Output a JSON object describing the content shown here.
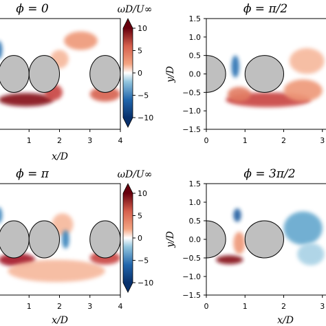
{
  "chart_data": [
    {
      "type": "heatmap",
      "panel": "top-left",
      "title": "ϕ = 0",
      "xlabel": "x/D",
      "ylabel": "",
      "xticks": [
        "1",
        "2",
        "3",
        "4"
      ],
      "yticks": [],
      "xlim": [
        0.0,
        4.0
      ],
      "ylim": [
        -1.5,
        1.5
      ],
      "cylinders": [
        {
          "x": 0.5,
          "y": 0.0,
          "r": 0.5
        },
        {
          "x": 1.5,
          "y": 0.0,
          "r": 0.5
        },
        {
          "x": 3.5,
          "y": 0.0,
          "r": 0.5
        }
      ],
      "regions": [
        {
          "x": 0.9,
          "y": -0.7,
          "rx": 0.9,
          "ry": 0.18,
          "w": 9
        },
        {
          "x": 1.8,
          "y": -0.5,
          "rx": 0.3,
          "ry": 0.22,
          "w": 6
        },
        {
          "x": 3.5,
          "y": -0.55,
          "rx": 0.5,
          "ry": 0.2,
          "w": 5
        },
        {
          "x": 2.7,
          "y": 0.9,
          "rx": 0.55,
          "ry": 0.25,
          "w": 3
        },
        {
          "x": 2.0,
          "y": 0.4,
          "rx": 0.3,
          "ry": 0.25,
          "w": 2
        },
        {
          "x": 0.0,
          "y": 0.65,
          "rx": 0.12,
          "ry": 0.25,
          "w": -7
        }
      ]
    },
    {
      "type": "heatmap",
      "panel": "top-right",
      "title": "ϕ = π/2",
      "xlabel": "",
      "ylabel": "y/D",
      "xticks": [
        "0",
        "1",
        "2",
        "3"
      ],
      "yticks": [
        "1.5",
        "1.0",
        "0.5",
        "0.0",
        "−0.5",
        "−1.0",
        "−1.5"
      ],
      "xlim": [
        0.0,
        3.2
      ],
      "ylim": [
        -1.5,
        1.5
      ],
      "cylinders": [
        {
          "x": 0.0,
          "y": 0.0,
          "r": 0.5
        },
        {
          "x": 1.5,
          "y": 0.0,
          "r": 0.5
        }
      ],
      "regions": [
        {
          "x": 1.6,
          "y": -0.7,
          "rx": 1.1,
          "ry": 0.2,
          "w": 6
        },
        {
          "x": 2.5,
          "y": -0.45,
          "rx": 0.5,
          "ry": 0.3,
          "w": 3
        },
        {
          "x": 0.85,
          "y": -0.55,
          "rx": 0.3,
          "ry": 0.2,
          "w": 4
        },
        {
          "x": 2.6,
          "y": 0.35,
          "rx": 0.45,
          "ry": 0.35,
          "w": 2
        },
        {
          "x": 0.75,
          "y": 0.2,
          "rx": 0.1,
          "ry": 0.3,
          "w": -7
        }
      ]
    },
    {
      "type": "heatmap",
      "panel": "bottom-left",
      "title": "ϕ = π",
      "xlabel": "x/D",
      "ylabel": "",
      "xticks": [
        "1",
        "2",
        "3",
        "4"
      ],
      "yticks": [],
      "xlim": [
        0.0,
        4.0
      ],
      "ylim": [
        -1.5,
        1.5
      ],
      "cylinders": [
        {
          "x": 0.5,
          "y": 0.0,
          "r": 0.5
        },
        {
          "x": 1.5,
          "y": 0.0,
          "r": 0.5
        },
        {
          "x": 3.5,
          "y": 0.0,
          "r": 0.5
        }
      ],
      "regions": [
        {
          "x": 0.6,
          "y": -0.55,
          "rx": 0.6,
          "ry": 0.18,
          "w": 8
        },
        {
          "x": 1.9,
          "y": -0.85,
          "rx": 1.6,
          "ry": 0.3,
          "w": 2
        },
        {
          "x": 2.1,
          "y": 0.4,
          "rx": 0.35,
          "ry": 0.3,
          "w": 2
        },
        {
          "x": 2.2,
          "y": 0.0,
          "rx": 0.12,
          "ry": 0.25,
          "w": -6
        },
        {
          "x": 3.5,
          "y": -0.5,
          "rx": 0.5,
          "ry": 0.18,
          "w": 6
        },
        {
          "x": 0.0,
          "y": 0.65,
          "rx": 0.12,
          "ry": 0.22,
          "w": -6
        }
      ]
    },
    {
      "type": "heatmap",
      "panel": "bottom-right",
      "title": "ϕ = 3π/2",
      "xlabel": "x/D",
      "ylabel": "y/D",
      "xticks": [
        "0",
        "1",
        "2",
        "3"
      ],
      "yticks": [
        "1.5",
        "1.0",
        "0.5",
        "0.0",
        "−0.5",
        "−1.0",
        "−1.5"
      ],
      "xlim": [
        0.0,
        3.2
      ],
      "ylim": [
        -1.5,
        1.5
      ],
      "cylinders": [
        {
          "x": 0.0,
          "y": 0.0,
          "r": 0.5
        },
        {
          "x": 1.5,
          "y": 0.0,
          "r": 0.5
        }
      ],
      "regions": [
        {
          "x": 0.6,
          "y": -0.55,
          "rx": 0.35,
          "ry": 0.12,
          "w": 9
        },
        {
          "x": 0.85,
          "y": -0.1,
          "rx": 0.15,
          "ry": 0.3,
          "w": 3
        },
        {
          "x": 2.5,
          "y": 0.3,
          "rx": 0.5,
          "ry": 0.45,
          "w": -4
        },
        {
          "x": 2.7,
          "y": -0.4,
          "rx": 0.35,
          "ry": 0.3,
          "w": -2
        },
        {
          "x": 0.8,
          "y": 0.65,
          "rx": 0.1,
          "ry": 0.18,
          "w": -8
        }
      ]
    }
  ],
  "colorbars": [
    {
      "label": "ωD/U∞",
      "ticks": [
        "10",
        "5",
        "0",
        "−5",
        "−10"
      ],
      "range": [
        -10,
        10
      ],
      "extend": "both"
    },
    {
      "label": "ωD/U∞",
      "ticks": [
        "10",
        "5",
        "0",
        "−5",
        "−10"
      ],
      "range": [
        -10,
        10
      ],
      "extend": "both"
    }
  ],
  "colors": {
    "negative": "#08306b",
    "zero": "#ffffff",
    "positive": "#67000d",
    "cylinder": "#bfbfbf"
  }
}
